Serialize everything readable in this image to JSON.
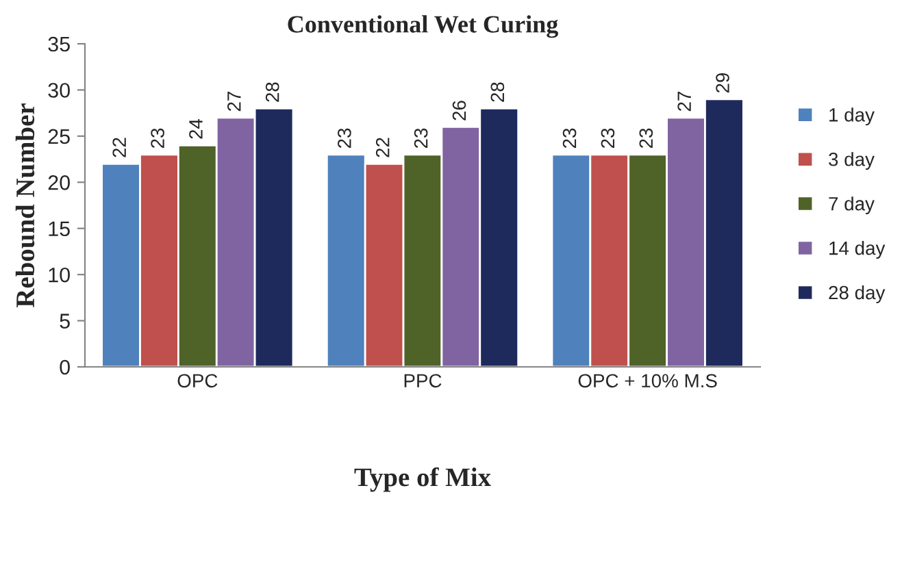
{
  "chart_data": {
    "type": "bar",
    "title": "Conventional Wet Curing",
    "xlabel": "Type of Mix",
    "ylabel": "Rebound Number",
    "categories": [
      "OPC",
      "PPC",
      "OPC + 10% M.S"
    ],
    "series": [
      {
        "name": "1 day",
        "color": "#4f81bd",
        "values": [
          22,
          23,
          23
        ]
      },
      {
        "name": "3 day",
        "color": "#c0504d",
        "values": [
          23,
          22,
          23
        ]
      },
      {
        "name": "7 day",
        "color": "#4f6228",
        "values": [
          24,
          23,
          23
        ]
      },
      {
        "name": "14 day",
        "color": "#8064a2",
        "values": [
          27,
          26,
          27
        ]
      },
      {
        "name": "28 day",
        "color": "#1f2a5c",
        "values": [
          28,
          28,
          29
        ]
      }
    ],
    "ylim": [
      0,
      35
    ],
    "yticks": [
      0,
      5,
      10,
      15,
      20,
      25,
      30,
      35
    ],
    "grid": false,
    "legend": "right",
    "data_labels": true
  }
}
